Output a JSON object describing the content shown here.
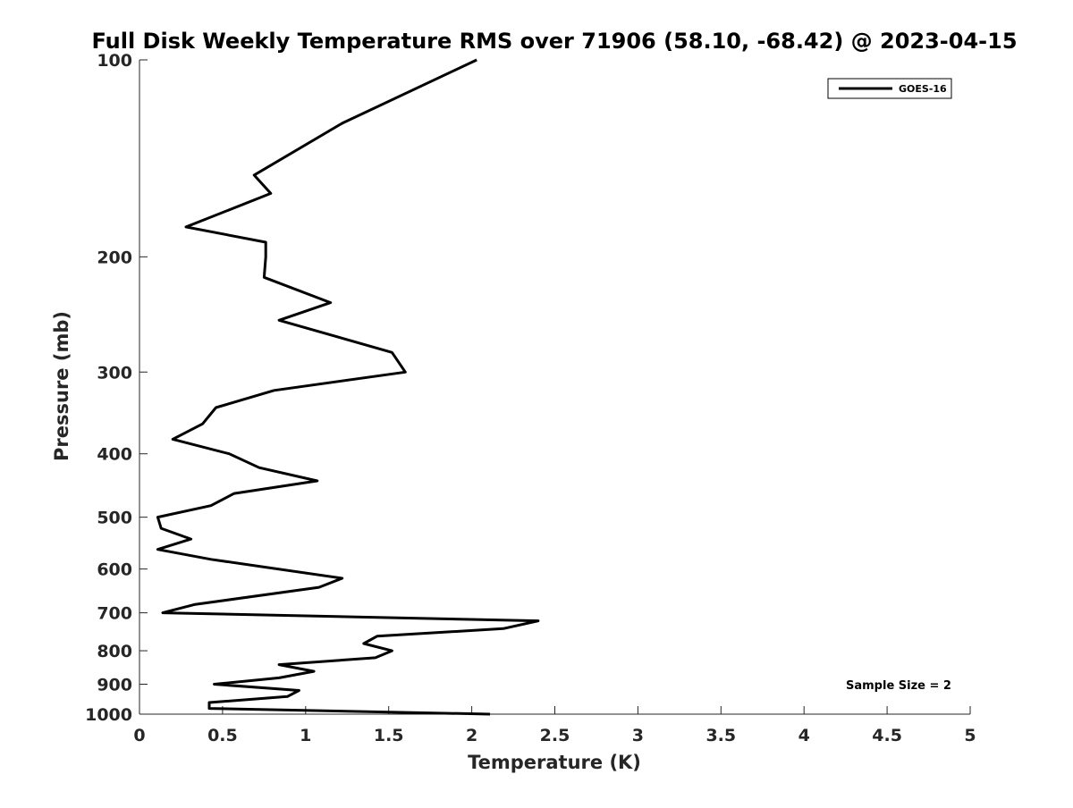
{
  "chart_data": {
    "type": "line",
    "title": "Full Disk Weekly Temperature RMS over 71906 (58.10, -68.42) @ 2023-04-15",
    "xlabel": "Temperature (K)",
    "ylabel": "Pressure (mb)",
    "xlim": [
      0,
      5
    ],
    "ylim": [
      100,
      1000
    ],
    "y_scale": "log",
    "y_reversed": true,
    "grid": false,
    "legend_position": "top-right",
    "x_ticks": [
      "0",
      "0.5",
      "1",
      "1.5",
      "2",
      "2.5",
      "3",
      "3.5",
      "4",
      "4.5",
      "5"
    ],
    "y_ticks": [
      "100",
      "200",
      "300",
      "400",
      "500",
      "600",
      "700",
      "800",
      "900",
      "1000"
    ],
    "annotation": "Sample Size = 2",
    "line_color": "#000000",
    "series": [
      {
        "name": "GOES-16",
        "x": [
          2.03,
          1.22,
          0.69,
          0.79,
          0.28,
          0.76,
          0.76,
          0.75,
          1.15,
          0.84,
          1.52,
          1.6,
          0.81,
          0.46,
          0.38,
          0.2,
          0.54,
          0.72,
          1.07,
          0.57,
          0.43,
          0.11,
          0.13,
          0.31,
          0.11,
          0.43,
          1.22,
          1.08,
          0.33,
          0.14,
          2.4,
          2.19,
          1.43,
          1.35,
          1.52,
          1.42,
          0.84,
          1.05,
          0.84,
          0.45,
          0.96,
          0.89,
          0.42,
          0.42,
          2.11
        ],
        "y": [
          100,
          125,
          150,
          160,
          180,
          190,
          200,
          215,
          235,
          250,
          280,
          300,
          320,
          340,
          360,
          380,
          400,
          420,
          440,
          460,
          480,
          500,
          520,
          540,
          560,
          580,
          620,
          640,
          680,
          700,
          720,
          740,
          760,
          780,
          800,
          820,
          840,
          860,
          880,
          900,
          920,
          940,
          960,
          980,
          1000
        ]
      }
    ]
  }
}
